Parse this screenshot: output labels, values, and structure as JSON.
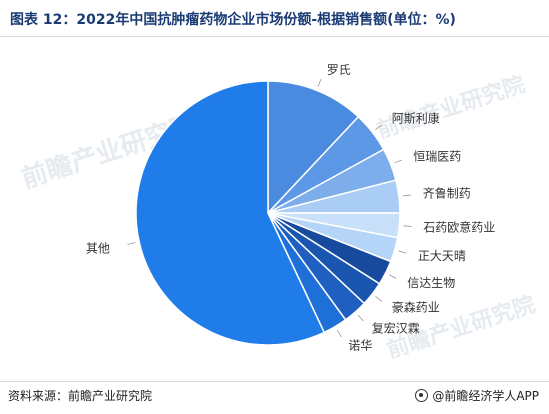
{
  "title": "图表 12：2022年中国抗肿瘤药物企业市场份额-根据销售额(单位：%)",
  "footer": {
    "source": "资料来源：前瞻产业研究院",
    "brand": "@前瞻经济学人APP"
  },
  "watermarks": [
    "前瞻产业研究院",
    "前瞻产业研究院",
    "前瞻产业研究院"
  ],
  "colors": {
    "dark_blue": "#1f5fbf",
    "navy": "#174a9c",
    "mid_blue": "#4a8be0",
    "light_blue": "#a9cdf5",
    "pale_blue": "#c8e0fa",
    "main_blue": "#1f7ce8"
  },
  "chart_data": {
    "type": "pie",
    "title": "2022年中国抗肿瘤药物企业市场份额-根据销售额(单位：%)",
    "unit": "%",
    "start_angle_deg": 0,
    "direction": "clockwise",
    "slices": [
      {
        "label": "罗氏",
        "value": 12.0,
        "color": "#4a8be0"
      },
      {
        "label": "阿斯利康",
        "value": 5.0,
        "color": "#5d98e6"
      },
      {
        "label": "恒瑞医药",
        "value": 4.0,
        "color": "#7dadeb"
      },
      {
        "label": "齐鲁制药",
        "value": 4.0,
        "color": "#a9cdf5"
      },
      {
        "label": "石药欧意药业",
        "value": 3.0,
        "color": "#c8e0fa"
      },
      {
        "label": "正大天晴",
        "value": 3.0,
        "color": "#b4d5f7"
      },
      {
        "label": "信达生物",
        "value": 3.0,
        "color": "#174a9c"
      },
      {
        "label": "豪森药业",
        "value": 3.0,
        "color": "#1a55b0"
      },
      {
        "label": "复宏汉霖",
        "value": 3.0,
        "color": "#1f5fbf"
      },
      {
        "label": "诺华",
        "value": 3.0,
        "color": "#1f6fd8"
      },
      {
        "label": "其他",
        "value": 57.0,
        "color": "#1f7ce8"
      }
    ]
  }
}
